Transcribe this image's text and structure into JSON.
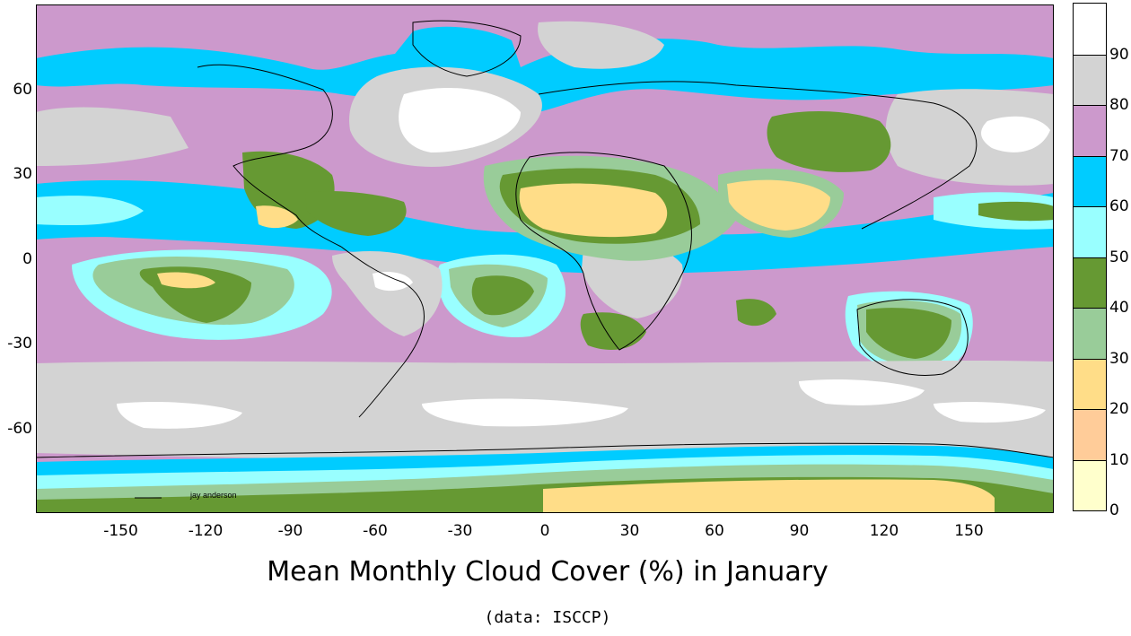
{
  "title": "Mean Monthly Cloud Cover (%) in January",
  "subtitle": "(data: ISCCP)",
  "credit": "jay anderson",
  "x_ticks": [
    "-150",
    "-120",
    "-90",
    "-60",
    "-30",
    "0",
    "30",
    "60",
    "90",
    "120",
    "150"
  ],
  "y_ticks": [
    "60",
    "30",
    "0",
    "-30",
    "-60"
  ],
  "x_tick_values": [
    -150,
    -120,
    -90,
    -60,
    -30,
    0,
    30,
    60,
    90,
    120,
    150
  ],
  "y_tick_values": [
    60,
    30,
    0,
    -30,
    -60
  ],
  "lon_range": [
    -180,
    180
  ],
  "lat_range": [
    -90,
    90
  ],
  "legend": {
    "levels": [
      {
        "label": "0",
        "value": 0,
        "color": "#ffffcc"
      },
      {
        "label": "10",
        "value": 10,
        "color": "#ffcc99"
      },
      {
        "label": "20",
        "value": 20,
        "color": "#ffdd88"
      },
      {
        "label": "30",
        "value": 30,
        "color": "#99cc99"
      },
      {
        "label": "40",
        "value": 40,
        "color": "#669933"
      },
      {
        "label": "50",
        "value": 50,
        "color": "#99ffff"
      },
      {
        "label": "60",
        "value": 60,
        "color": "#00ccff"
      },
      {
        "label": "70",
        "value": 70,
        "color": "#cc99cc"
      },
      {
        "label": "80",
        "value": 80,
        "color": "#d3d3d3"
      },
      {
        "label": "90",
        "value": 90,
        "color": "#ffffff"
      }
    ]
  }
}
